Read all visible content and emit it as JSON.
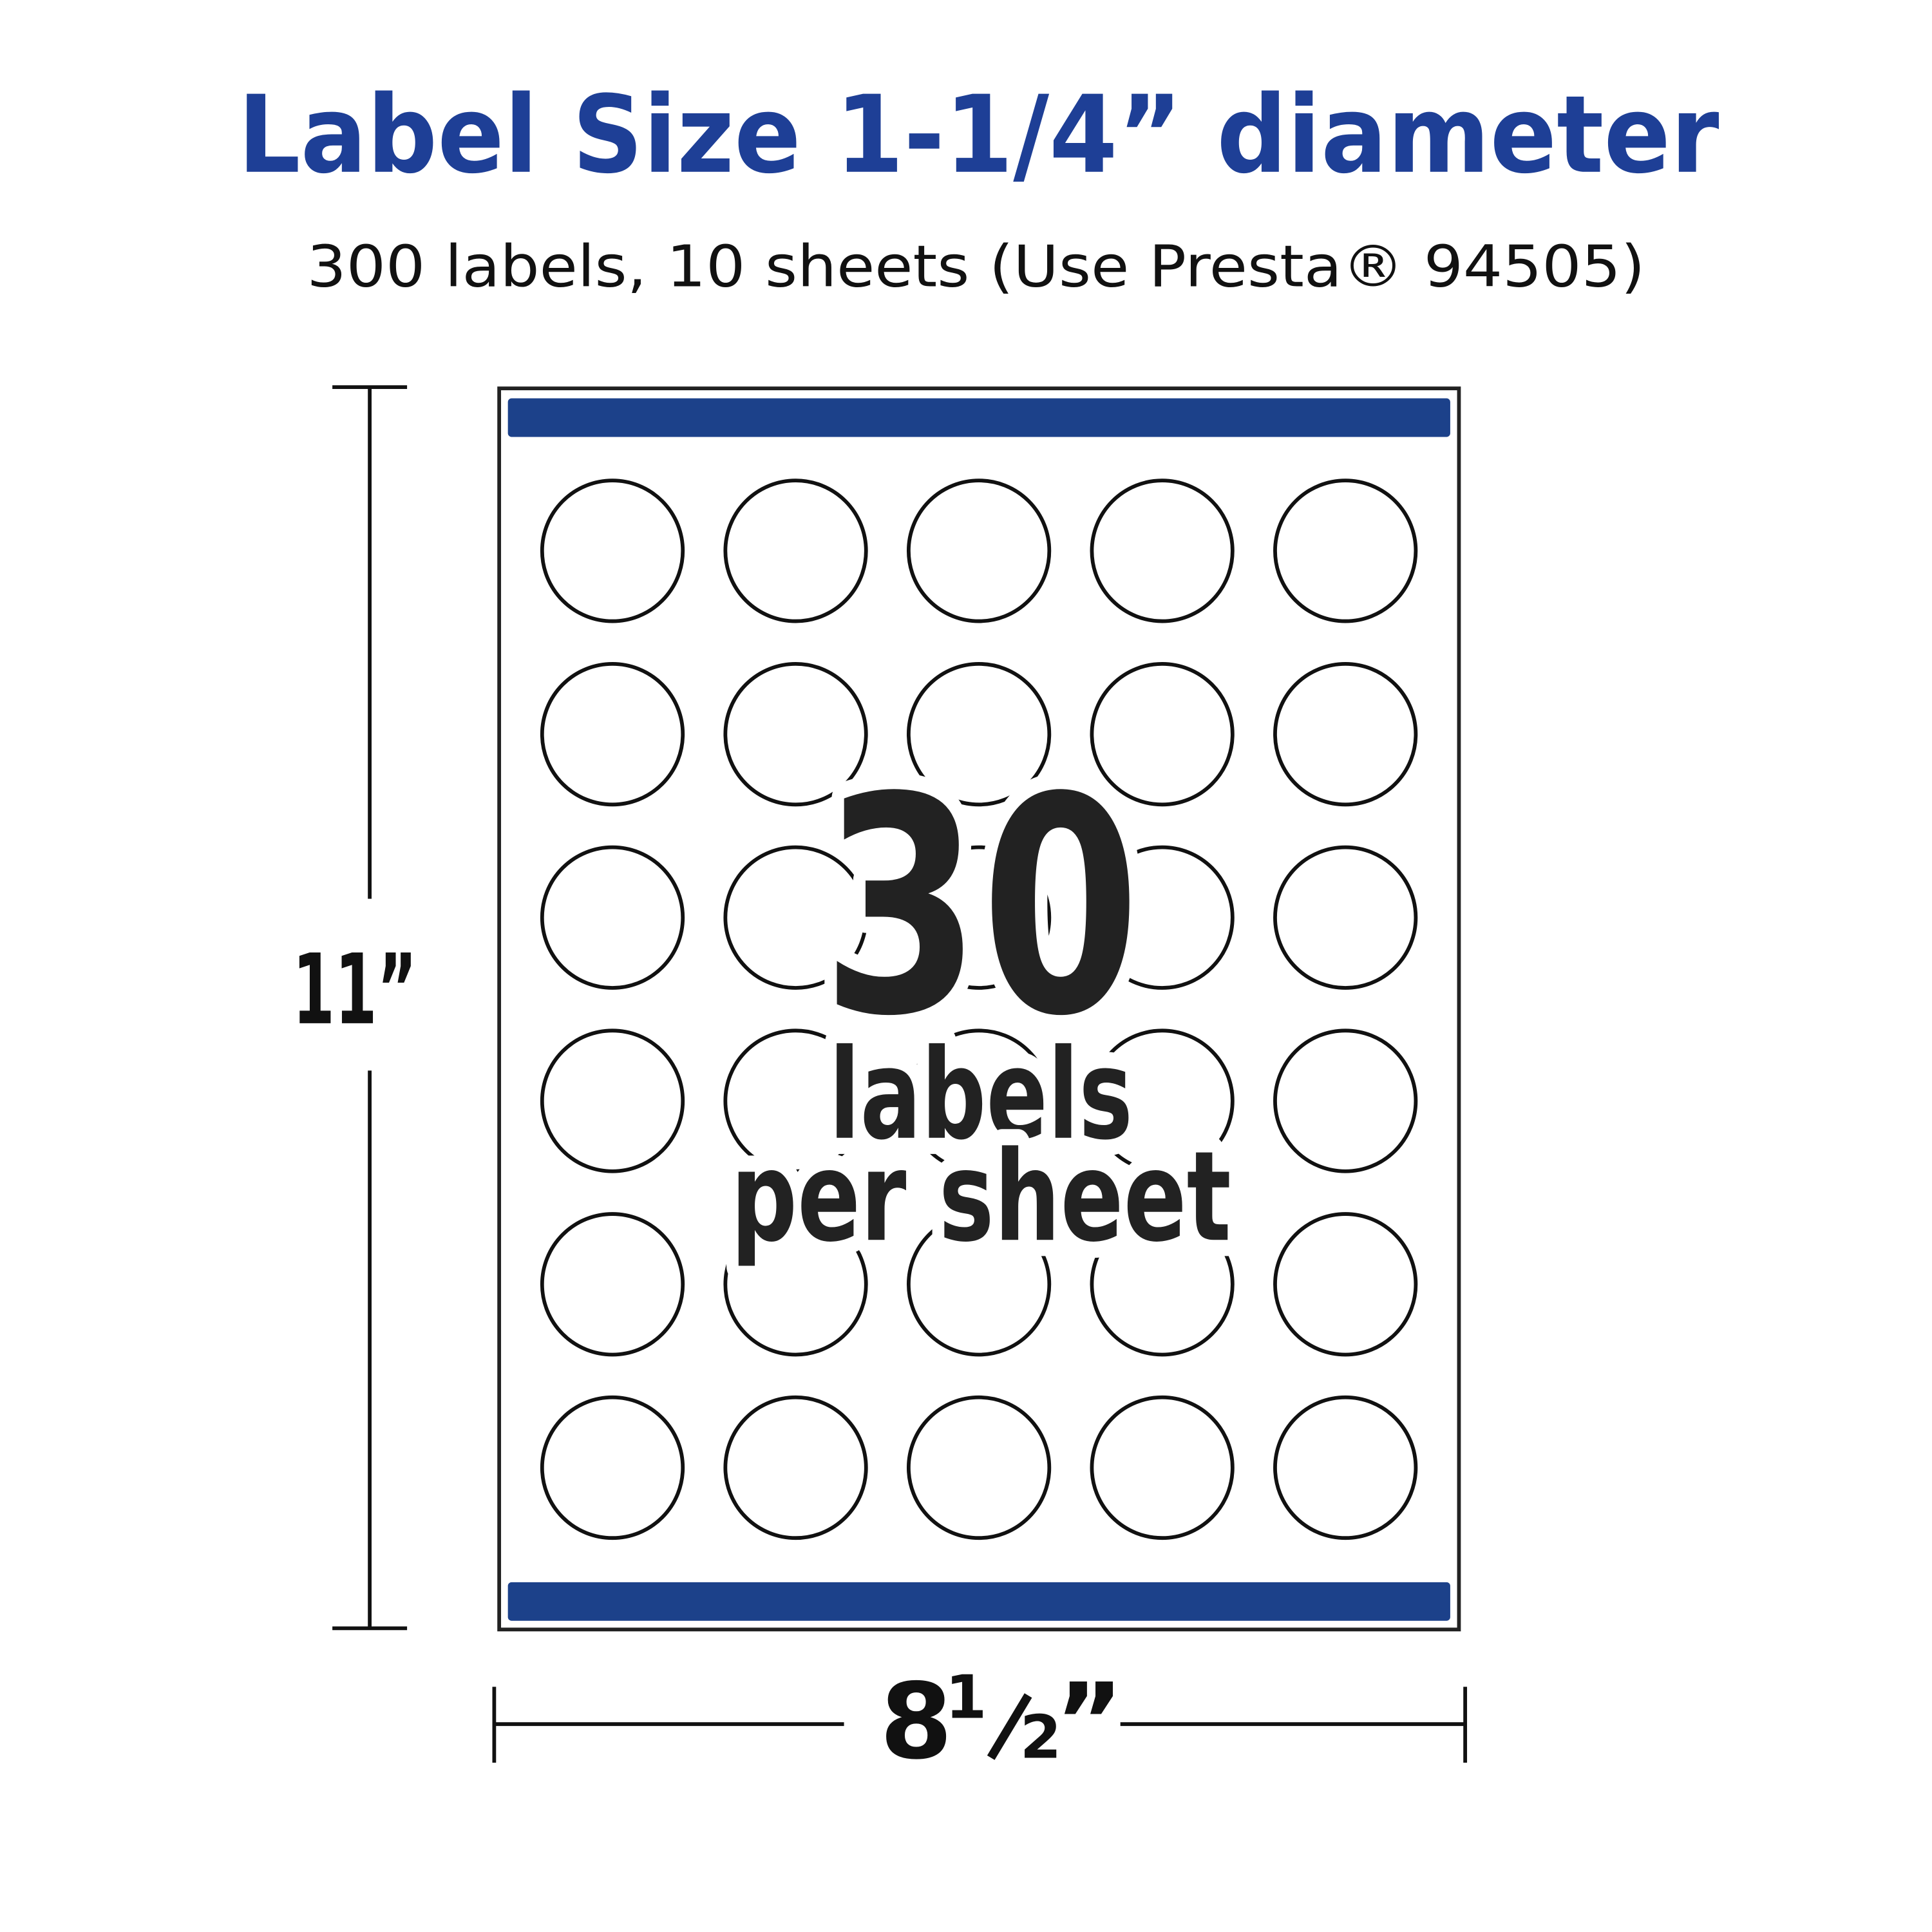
{
  "header": {
    "title": "Label Size 1-1/4” diameter",
    "subtitle": "300 labels, 10 sheets (Use Presta® 94505)"
  },
  "sheet": {
    "count_number": "30",
    "count_line1": "labels",
    "count_line2": "per sheet",
    "rows": 6,
    "cols": 5
  },
  "dimensions": {
    "height_label": "11”",
    "width_whole": "8",
    "width_num": "1",
    "width_den": "2",
    "width_mark": "”"
  },
  "colors": {
    "brand_blue": "#1e3f96",
    "bar_blue": "#1c418a",
    "ink": "#222222"
  }
}
